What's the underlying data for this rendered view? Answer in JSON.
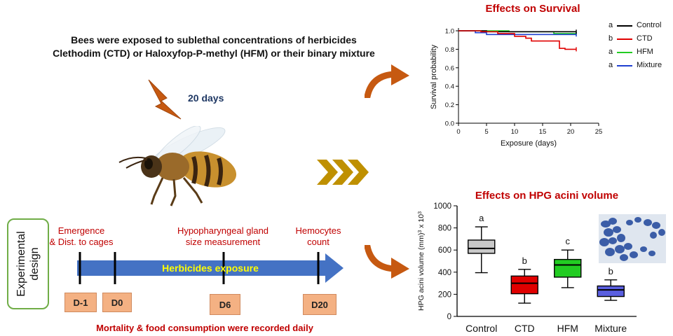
{
  "intro": {
    "line1": "Bees were exposed to sublethal concentrations of herbicides",
    "line2": "Clethodim (CTD) or Haloxyfop-P-methyl (HFM) or their binary mixture"
  },
  "duration": "20 days",
  "design": {
    "box_label_line1": "Experimental",
    "box_label_line2": "design",
    "events": [
      {
        "label_line1": "Emergence",
        "label_line2": "& Dist. to cages"
      },
      {
        "label_line1": "Hypopharyngeal gland",
        "label_line2": "size measurement"
      },
      {
        "label_line1": "Hemocytes",
        "label_line2": "count"
      }
    ],
    "arrow_label": "Herbicides exposure",
    "days": [
      "D-1",
      "D0",
      "D6",
      "D20"
    ],
    "footer": "Mortality & food consumption were  recorded daily"
  },
  "colors": {
    "control": "#000000",
    "ctd": "#e00000",
    "hfm": "#22cc22",
    "mixture": "#1f3fd0",
    "accent_red": "#c00000",
    "arrow_orange": "#c65911",
    "timeline_blue": "#4472c4",
    "chevron_gold": "#bf9000",
    "design_green": "#70ad47",
    "day_box": "#f4b183"
  },
  "chart_data": [
    {
      "type": "line",
      "title": "Effects on Survival",
      "xlabel": "Exposure (days)",
      "ylabel": "Survival probability",
      "xlim": [
        0,
        25
      ],
      "ylim": [
        0.0,
        1.0
      ],
      "xticks": [
        "0",
        "5",
        "10",
        "15",
        "20",
        "25"
      ],
      "yticks": [
        "0.0",
        "0.2",
        "0.4",
        "0.6",
        "0.8",
        "1.0"
      ],
      "legend_position": "right",
      "series": [
        {
          "name": "Control",
          "letter": "a",
          "steps": [
            [
              0,
              1.0
            ],
            [
              5,
              0.99
            ],
            [
              21,
              0.99
            ]
          ]
        },
        {
          "name": "CTD",
          "letter": "b",
          "steps": [
            [
              0,
              1.0
            ],
            [
              4,
              0.99
            ],
            [
              7,
              0.97
            ],
            [
              10,
              0.94
            ],
            [
              12,
              0.92
            ],
            [
              13,
              0.89
            ],
            [
              18,
              0.81
            ],
            [
              19,
              0.8
            ],
            [
              21,
              0.8
            ]
          ]
        },
        {
          "name": "HFM",
          "letter": "a",
          "steps": [
            [
              0,
              1.0
            ],
            [
              9,
              0.99
            ],
            [
              17,
              0.97
            ],
            [
              21,
              0.97
            ]
          ]
        },
        {
          "name": "Mixture",
          "letter": "a",
          "steps": [
            [
              0,
              1.0
            ],
            [
              3,
              0.98
            ],
            [
              5,
              0.96
            ],
            [
              21,
              0.96
            ]
          ]
        }
      ]
    },
    {
      "type": "box",
      "title": "Effects on HPG acini volume",
      "ylabel_main": "HPG acini volume (mm)",
      "ylabel_sup3": "3",
      "ylabel_x": " x 10",
      "ylabel_sup": "3",
      "ylim": [
        0,
        1000
      ],
      "yticks": [
        "0",
        "200",
        "400",
        "600",
        "800",
        "1000"
      ],
      "categories": [
        "Control",
        "CTD",
        "HFM",
        "Mixture"
      ],
      "boxes": [
        {
          "min": 395,
          "q1": 570,
          "median": 615,
          "q3": 690,
          "max": 810,
          "letter": "a"
        },
        {
          "min": 120,
          "q1": 205,
          "median": 300,
          "q3": 365,
          "max": 425,
          "letter": "b"
        },
        {
          "min": 260,
          "q1": 355,
          "median": 465,
          "q3": 515,
          "max": 600,
          "letter": "c"
        },
        {
          "min": 145,
          "q1": 180,
          "median": 240,
          "q3": 275,
          "max": 330,
          "letter": "b"
        }
      ]
    }
  ]
}
